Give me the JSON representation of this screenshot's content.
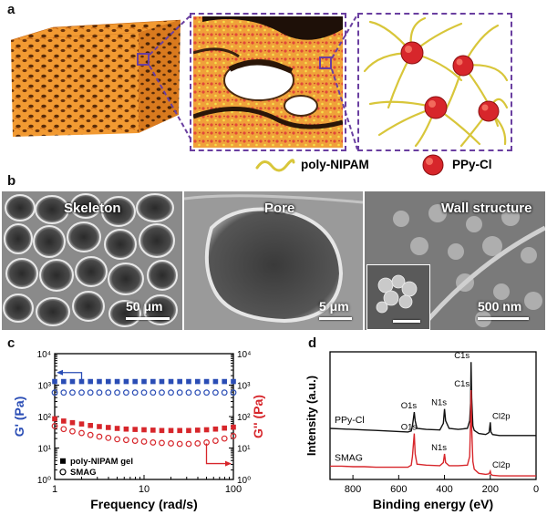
{
  "panel_a": {
    "label": "a",
    "legend": [
      {
        "name": "poly-NIPAM",
        "icon": "polymer-chain-icon",
        "color": "#e8d84a"
      },
      {
        "name": "PPy-Cl",
        "icon": "ppy-particle-icon",
        "color": "#d7262b"
      }
    ],
    "accent_color": "#6a3fa0"
  },
  "panel_b": {
    "label": "b",
    "images": [
      {
        "title": "Skeleton",
        "scale": "50 μm"
      },
      {
        "title": "Pore",
        "scale": "5 μm"
      },
      {
        "title": "Wall structure",
        "scale": "500 nm"
      }
    ]
  },
  "chart_data": [
    {
      "label": "c",
      "type": "scatter",
      "xlabel": "Frequency (rad/s)",
      "ylabel_left": "G' (Pa)",
      "ylabel_right": "G'' (Pa)",
      "xscale": "log",
      "yscale": "log",
      "xlim": [
        1,
        100
      ],
      "ylim": [
        1,
        10000
      ],
      "xticks": [
        "1",
        "10",
        "100"
      ],
      "yticks": [
        "10⁰",
        "10¹",
        "10²",
        "10³",
        "10⁴"
      ],
      "left_color": "#2a4db5",
      "right_color": "#d7262b",
      "legend": [
        "poly-NIPAM gel",
        "SMAG"
      ],
      "legend_location": "lower-left",
      "series": [
        {
          "name": "poly-NIPAM gel",
          "modulus": "G'",
          "marker": "filled-square",
          "color": "#2a4db5",
          "x": [
            1,
            1.26,
            1.58,
            2,
            2.51,
            3.16,
            3.98,
            5.01,
            6.31,
            7.94,
            10,
            12.6,
            15.8,
            20,
            25.1,
            31.6,
            39.8,
            50.1,
            63.1,
            79.4,
            100
          ],
          "y": [
            1300,
            1300,
            1300,
            1300,
            1300,
            1300,
            1300,
            1300,
            1300,
            1300,
            1300,
            1300,
            1300,
            1300,
            1300,
            1300,
            1300,
            1300,
            1300,
            1300,
            1300
          ]
        },
        {
          "name": "SMAG",
          "modulus": "G'",
          "marker": "open-circle",
          "color": "#2a4db5",
          "x": [
            1,
            1.26,
            1.58,
            2,
            2.51,
            3.16,
            3.98,
            5.01,
            6.31,
            7.94,
            10,
            12.6,
            15.8,
            20,
            25.1,
            31.6,
            39.8,
            50.1,
            63.1,
            79.4,
            100
          ],
          "y": [
            580,
            580,
            580,
            580,
            580,
            580,
            580,
            580,
            580,
            580,
            580,
            580,
            580,
            580,
            580,
            580,
            580,
            580,
            580,
            580,
            580
          ]
        },
        {
          "name": "poly-NIPAM gel",
          "modulus": "G''",
          "marker": "filled-square",
          "color": "#d7262b",
          "x": [
            1,
            1.26,
            1.58,
            2,
            2.51,
            3.16,
            3.98,
            5.01,
            6.31,
            7.94,
            10,
            12.6,
            15.8,
            20,
            25.1,
            31.6,
            39.8,
            50.1,
            63.1,
            79.4,
            100
          ],
          "y": [
            85,
            72,
            64,
            58,
            52,
            48,
            45,
            42,
            40,
            39,
            38,
            37,
            36,
            36,
            36,
            36,
            37,
            38,
            40,
            43,
            46
          ]
        },
        {
          "name": "SMAG",
          "modulus": "G''",
          "marker": "open-circle",
          "color": "#d7262b",
          "x": [
            1,
            1.26,
            1.58,
            2,
            2.51,
            3.16,
            3.98,
            5.01,
            6.31,
            7.94,
            10,
            12.6,
            15.8,
            20,
            25.1,
            31.6,
            39.8,
            50.1,
            63.1,
            79.4,
            100
          ],
          "y": [
            50,
            40,
            34,
            30,
            26,
            23,
            21,
            19,
            18,
            17,
            16,
            15,
            14.5,
            14,
            13.5,
            13.5,
            14,
            15,
            17,
            20,
            24
          ]
        }
      ]
    },
    {
      "label": "d",
      "type": "line",
      "xlabel": "Binding energy (eV)",
      "ylabel": "Intensity (a.u.)",
      "xlim": [
        900,
        0
      ],
      "xticks": [
        "800",
        "600",
        "400",
        "200",
        "0"
      ],
      "series": [
        {
          "name": "PPy-Cl",
          "color": "#111111",
          "x": [
            900,
            850,
            800,
            750,
            700,
            650,
            600,
            560,
            545,
            540,
            532,
            528,
            520,
            480,
            420,
            405,
            400,
            395,
            380,
            340,
            300,
            290,
            286,
            284,
            281,
            276,
            270,
            250,
            220,
            205,
            200,
            197,
            190,
            160,
            120,
            80,
            40,
            0
          ],
          "y": [
            1.0,
            0.99,
            0.98,
            0.97,
            0.96,
            0.95,
            0.94,
            0.93,
            0.95,
            1.05,
            1.32,
            1.15,
            1.0,
            0.98,
            0.97,
            1.1,
            1.38,
            1.15,
            1.0,
            0.98,
            1.0,
            1.15,
            1.5,
            2.3,
            1.6,
            1.05,
            0.96,
            0.9,
            0.88,
            0.92,
            1.12,
            0.93,
            0.88,
            0.86,
            0.86,
            0.86,
            0.86,
            0.86
          ]
        },
        {
          "name": "SMAG",
          "color": "#d7262b",
          "x": [
            900,
            850,
            800,
            750,
            700,
            650,
            600,
            560,
            545,
            540,
            532,
            528,
            520,
            480,
            420,
            405,
            400,
            395,
            380,
            340,
            300,
            290,
            286,
            284,
            281,
            276,
            270,
            250,
            220,
            205,
            200,
            197,
            190,
            160,
            120,
            80,
            40,
            0
          ],
          "y": [
            0.26,
            0.26,
            0.25,
            0.25,
            0.24,
            0.24,
            0.24,
            0.24,
            0.28,
            0.45,
            0.9,
            0.5,
            0.3,
            0.28,
            0.27,
            0.33,
            0.5,
            0.33,
            0.27,
            0.27,
            0.28,
            0.45,
            1.2,
            1.75,
            1.0,
            0.35,
            0.2,
            0.12,
            0.1,
            0.11,
            0.16,
            0.1,
            0.08,
            0.07,
            0.07,
            0.07,
            0.07,
            0.07
          ]
        }
      ],
      "annotations": [
        {
          "series": "PPy-Cl",
          "text": "O1s",
          "x": 532
        },
        {
          "series": "PPy-Cl",
          "text": "N1s",
          "x": 400
        },
        {
          "series": "PPy-Cl",
          "text": "C1s",
          "x": 284
        },
        {
          "series": "PPy-Cl",
          "text": "Cl2p",
          "x": 200
        },
        {
          "series": "SMAG",
          "text": "O1s",
          "x": 532
        },
        {
          "series": "SMAG",
          "text": "N1s",
          "x": 400
        },
        {
          "series": "SMAG",
          "text": "C1s",
          "x": 284
        },
        {
          "series": "SMAG",
          "text": "Cl2p",
          "x": 200
        }
      ]
    }
  ]
}
